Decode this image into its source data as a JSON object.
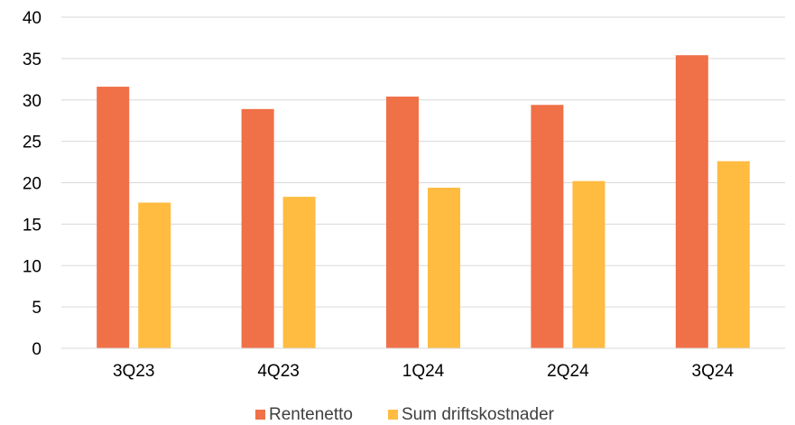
{
  "chart_data": {
    "type": "bar",
    "categories": [
      "3Q23",
      "4Q23",
      "1Q24",
      "2Q24",
      "3Q24"
    ],
    "series": [
      {
        "name": "Rentenetto",
        "values": [
          31.6,
          28.9,
          30.4,
          29.4,
          35.4
        ],
        "color": "#f07048"
      },
      {
        "name": "Sum driftskostnader",
        "values": [
          17.6,
          18.3,
          19.4,
          20.2,
          22.6
        ],
        "color": "#ffbc41"
      }
    ],
    "ylim": [
      0,
      40
    ],
    "yticks": [
      0,
      5,
      10,
      15,
      20,
      25,
      30,
      35,
      40
    ],
    "grid": true,
    "legend_position": "bottom"
  }
}
